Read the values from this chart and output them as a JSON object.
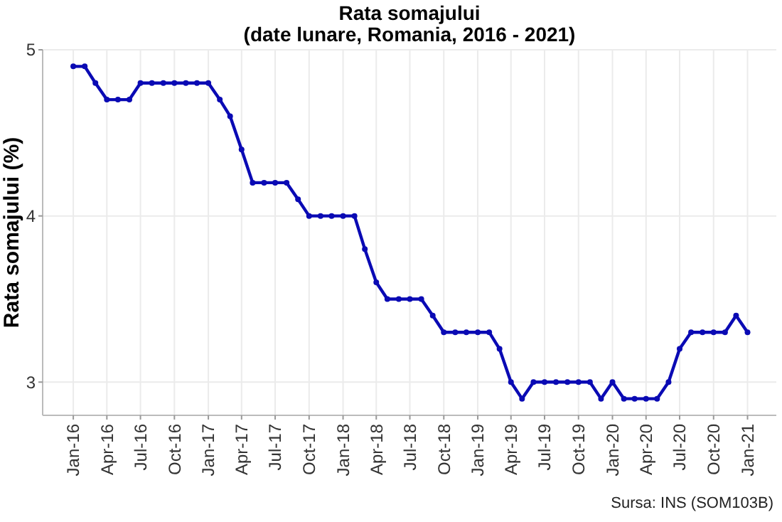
{
  "chart_data": {
    "type": "line",
    "title": "Rata somajului",
    "subtitle": "(date lunare, Romania, 2016 - 2021)",
    "ylabel": "Rata somajului (%)",
    "annotations": [
      "Sursa: INS (SOM103B)"
    ],
    "x": [
      "2016-01",
      "2016-02",
      "2016-03",
      "2016-04",
      "2016-05",
      "2016-06",
      "2016-07",
      "2016-08",
      "2016-09",
      "2016-10",
      "2016-11",
      "2016-12",
      "2017-01",
      "2017-02",
      "2017-03",
      "2017-04",
      "2017-05",
      "2017-06",
      "2017-07",
      "2017-08",
      "2017-09",
      "2017-10",
      "2017-11",
      "2017-12",
      "2018-01",
      "2018-02",
      "2018-03",
      "2018-04",
      "2018-05",
      "2018-06",
      "2018-07",
      "2018-08",
      "2018-09",
      "2018-10",
      "2018-11",
      "2018-12",
      "2019-01",
      "2019-02",
      "2019-03",
      "2019-04",
      "2019-05",
      "2019-06",
      "2019-07",
      "2019-08",
      "2019-09",
      "2019-10",
      "2019-11",
      "2019-12",
      "2020-01",
      "2020-02",
      "2020-03",
      "2020-04",
      "2020-05",
      "2020-06",
      "2020-07",
      "2020-08",
      "2020-09",
      "2020-10",
      "2020-11",
      "2020-12",
      "2021-01"
    ],
    "series": [
      {
        "color": "#0a0ab4",
        "values": [
          4.9,
          4.9,
          4.8,
          4.7,
          4.7,
          4.7,
          4.8,
          4.8,
          4.8,
          4.8,
          4.8,
          4.8,
          4.8,
          4.7,
          4.6,
          4.4,
          4.2,
          4.2,
          4.2,
          4.2,
          4.1,
          4.0,
          4.0,
          4.0,
          4.0,
          4.0,
          3.8,
          3.6,
          3.5,
          3.5,
          3.5,
          3.5,
          3.4,
          3.3,
          3.3,
          3.3,
          3.3,
          3.3,
          3.2,
          3.0,
          2.9,
          3.0,
          3.0,
          3.0,
          3.0,
          3.0,
          3.0,
          2.9,
          3.0,
          2.9,
          2.9,
          2.9,
          2.9,
          3.0,
          3.2,
          3.3,
          3.3,
          3.3,
          3.3,
          3.4,
          3.3
        ]
      }
    ],
    "xlim": [
      "2015-10-10",
      "2021-03-20"
    ],
    "xticks": [
      {
        "value": "2016-01",
        "label": "Jan-16"
      },
      {
        "value": "2016-04",
        "label": "Apr-16"
      },
      {
        "value": "2016-07",
        "label": "Jul-16"
      },
      {
        "value": "2016-10",
        "label": "Oct-16"
      },
      {
        "value": "2017-01",
        "label": "Jan-17"
      },
      {
        "value": "2017-04",
        "label": "Apr-17"
      },
      {
        "value": "2017-07",
        "label": "Jul-17"
      },
      {
        "value": "2017-10",
        "label": "Oct-17"
      },
      {
        "value": "2018-01",
        "label": "Jan-18"
      },
      {
        "value": "2018-04",
        "label": "Apr-18"
      },
      {
        "value": "2018-07",
        "label": "Jul-18"
      },
      {
        "value": "2018-10",
        "label": "Oct-18"
      },
      {
        "value": "2019-01",
        "label": "Jan-19"
      },
      {
        "value": "2019-04",
        "label": "Apr-19"
      },
      {
        "value": "2019-07",
        "label": "Jul-19"
      },
      {
        "value": "2019-10",
        "label": "Oct-19"
      },
      {
        "value": "2020-01",
        "label": "Jan-20"
      },
      {
        "value": "2020-04",
        "label": "Apr-20"
      },
      {
        "value": "2020-07",
        "label": "Jul-20"
      },
      {
        "value": "2020-10",
        "label": "Oct-20"
      },
      {
        "value": "2021-01",
        "label": "Jan-21"
      }
    ],
    "ylim": [
      2.8,
      5
    ],
    "yticks": [
      3,
      4,
      5
    ],
    "grid": true,
    "marker": "circle",
    "line_style": "solid"
  }
}
